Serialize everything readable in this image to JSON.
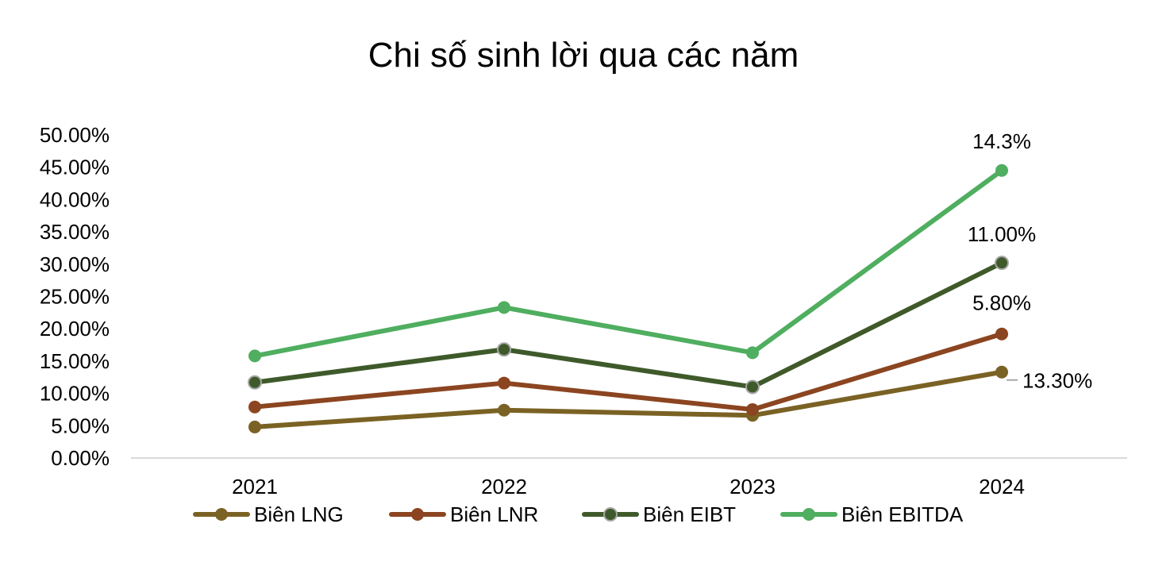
{
  "chart_data": {
    "type": "line",
    "title": "Chi số sinh lời qua các năm",
    "xlabel": "",
    "ylabel": "",
    "categories": [
      "2021",
      "2022",
      "2023",
      "2024"
    ],
    "y_ticks": [
      "0.00%",
      "5.00%",
      "10.00%",
      "15.00%",
      "20.00%",
      "25.00%",
      "30.00%",
      "35.00%",
      "40.00%",
      "45.00%",
      "50.00%"
    ],
    "ylim": [
      0,
      50
    ],
    "grid": false,
    "legend_position": "bottom",
    "series": [
      {
        "name": "Biên LNG",
        "color": "#7A6224",
        "values": [
          4.8,
          7.4,
          6.6,
          13.3
        ],
        "labels": [
          "",
          "",
          "",
          "13.30%"
        ]
      },
      {
        "name": "Biên LNR",
        "color": "#8B4520",
        "values": [
          7.9,
          11.6,
          7.5,
          19.2
        ],
        "labels": [
          "",
          "",
          "",
          "5.80%"
        ]
      },
      {
        "name": "Biên EIBT",
        "color": "#3F5A2A",
        "values": [
          11.7,
          16.8,
          11.0,
          30.2
        ],
        "labels": [
          "",
          "",
          "",
          "11.00%"
        ]
      },
      {
        "name": "Biên EBITDA",
        "color": "#4FAE5F",
        "values": [
          15.8,
          23.3,
          16.3,
          44.5
        ],
        "labels": [
          "",
          "",
          "",
          "14.3%"
        ]
      }
    ]
  }
}
